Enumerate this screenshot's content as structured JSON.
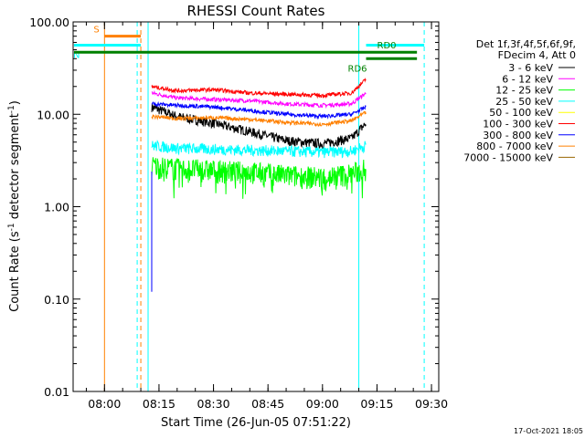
{
  "chart_data": {
    "type": "line",
    "title": "RHESSI Count Rates",
    "xlabel": "Start Time (26-Jun-05 07:51:22)",
    "ylabel_prefix": "Count Rate (s",
    "ylabel_sup1": "-1",
    "ylabel_mid": " detector segment",
    "ylabel_sup2": "-1",
    "ylabel_suffix": ")",
    "y_scale": "log",
    "ylim": [
      0.01,
      100
    ],
    "yticks": [
      0.01,
      0.1,
      1,
      10,
      100
    ],
    "ytick_labels": [
      "0.01",
      "0.10",
      "1.00",
      "10.00",
      "100.00"
    ],
    "xlim": [
      "07:51:22",
      "09:32:00"
    ],
    "xticks": [
      "08:00",
      "08:15",
      "08:30",
      "08:45",
      "09:00",
      "09:15",
      "09:30"
    ],
    "grid": false,
    "legend_position": "right",
    "legend_header": [
      "Det 1f,3f,4f,5f,6f,9f,",
      "FDecim 4, Att 0"
    ],
    "series": [
      {
        "name": "3 - 6 keV",
        "color": "#000000",
        "time": [
          "08:13",
          "08:20",
          "08:30",
          "08:40",
          "08:50",
          "09:00",
          "09:08",
          "09:12"
        ],
        "values": [
          12.0,
          9.5,
          8.0,
          6.5,
          5.2,
          4.8,
          5.5,
          8.0
        ]
      },
      {
        "name": "6 - 12 keV",
        "color": "#ff00ff",
        "time": [
          "08:13",
          "08:20",
          "08:30",
          "08:40",
          "08:50",
          "09:00",
          "09:08",
          "09:12"
        ],
        "values": [
          17.0,
          15.0,
          14.5,
          14.0,
          13.0,
          12.5,
          13.0,
          17.0
        ]
      },
      {
        "name": "12 - 25 keV",
        "color": "#00ff00",
        "time": [
          "08:13",
          "08:20",
          "08:30",
          "08:40",
          "08:50",
          "09:00",
          "09:08",
          "09:12"
        ],
        "values": [
          2.8,
          2.6,
          2.5,
          2.4,
          2.2,
          2.1,
          2.3,
          2.6
        ]
      },
      {
        "name": "25 - 50 keV",
        "color": "#00ffff",
        "time": [
          "08:13",
          "08:20",
          "08:30",
          "08:40",
          "08:50",
          "09:00",
          "09:08",
          "09:12"
        ],
        "values": [
          4.6,
          4.3,
          4.2,
          4.1,
          4.0,
          3.9,
          4.0,
          4.6
        ]
      },
      {
        "name": "50 - 100 keV",
        "color": "#ffff00",
        "time": [],
        "values": []
      },
      {
        "name": "100 - 300 keV",
        "color": "#ff0000",
        "time": [
          "08:13",
          "08:20",
          "08:30",
          "08:40",
          "08:50",
          "09:00",
          "09:08",
          "09:12"
        ],
        "values": [
          20.0,
          18.0,
          18.5,
          17.0,
          16.5,
          16.0,
          17.0,
          24.0
        ]
      },
      {
        "name": "300 - 800 keV",
        "color": "#0000ff",
        "time": [
          "08:13",
          "08:20",
          "08:30",
          "08:40",
          "08:50",
          "09:00",
          "09:08",
          "09:12"
        ],
        "values": [
          13.0,
          12.5,
          12.0,
          11.0,
          10.0,
          9.5,
          10.0,
          12.0
        ]
      },
      {
        "name": "800 - 7000 keV",
        "color": "#ff8000",
        "time": [
          "08:13",
          "08:20",
          "08:30",
          "08:40",
          "08:50",
          "09:00",
          "09:08",
          "09:12"
        ],
        "values": [
          9.5,
          9.0,
          9.2,
          8.8,
          8.2,
          7.8,
          8.5,
          10.5
        ]
      },
      {
        "name": "7000 - 15000 keV",
        "color": "#996600",
        "time": [],
        "values": []
      }
    ],
    "flags": [
      {
        "label": "S",
        "color": "#ff8000",
        "start": "08:00",
        "end": "08:10",
        "level": 70
      },
      {
        "label": "N",
        "color": "#00ffff",
        "start": "07:51",
        "end": "08:10",
        "level": 56
      },
      {
        "label": "",
        "color": "#00ffff",
        "start": "09:12",
        "end": "09:28",
        "level": 56
      },
      {
        "label": "",
        "color": "#008000",
        "start": "07:51",
        "end": "09:12",
        "level": 47
      },
      {
        "label": "RD0",
        "color": "#008000",
        "start": "09:12",
        "end": "09:26",
        "level": 47
      },
      {
        "label": "RD6",
        "color": "#008000",
        "start": "09:12",
        "end": "09:26",
        "level": 40
      }
    ],
    "vertical_markers": [
      {
        "time": "08:00",
        "color": "#ff8000",
        "style": "solid"
      },
      {
        "time": "08:10",
        "color": "#ff8000",
        "style": "dashed"
      },
      {
        "time": "08:09",
        "color": "#00ffff",
        "style": "dashed"
      },
      {
        "time": "08:12",
        "color": "#00ffff",
        "style": "solid"
      },
      {
        "time": "09:10",
        "color": "#00ffff",
        "style": "solid"
      },
      {
        "time": "09:28",
        "color": "#00ffff",
        "style": "dashed"
      }
    ]
  },
  "footer": "17-Oct-2021 18:05"
}
